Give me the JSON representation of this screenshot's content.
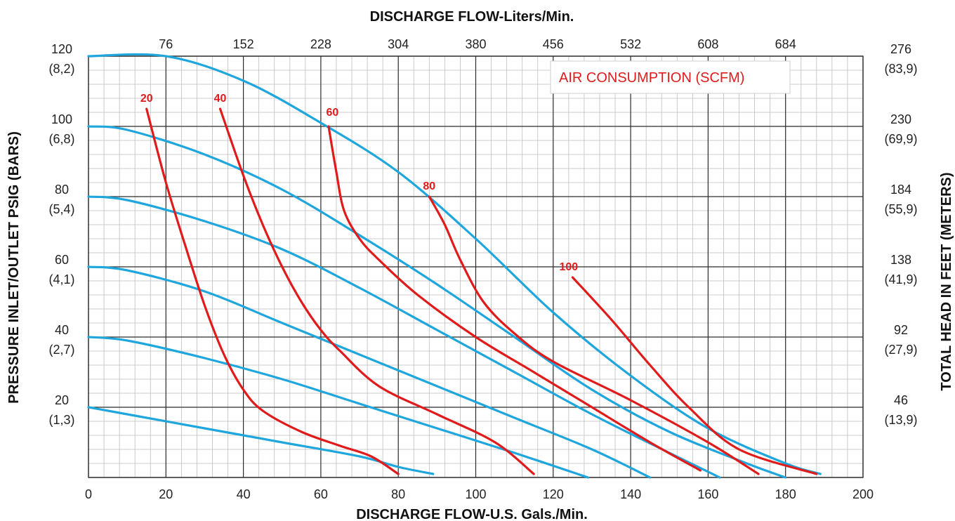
{
  "chart_data": {
    "type": "line",
    "title": "AIR CONSUMPTION (SCFM)",
    "xlabel": "DISCHARGE FLOW-U.S. Gals./Min.",
    "x2label": "DISCHARGE FLOW-Liters/Min.",
    "ylabel": "PRESSURE INLET/OUTLET PSIG (BARS)",
    "y2label": "TOTAL HEAD IN FEET (METERS)",
    "xlim": [
      0,
      200
    ],
    "ylim": [
      0,
      120
    ],
    "grid": true,
    "legend_position": "top-right",
    "x_ticks": [
      "0",
      "20",
      "40",
      "60",
      "80",
      "100",
      "120",
      "140",
      "160",
      "180",
      "200"
    ],
    "x2_ticks": [
      {
        "x": 20,
        "label": "76"
      },
      {
        "x": 40,
        "label": "152"
      },
      {
        "x": 60,
        "label": "228"
      },
      {
        "x": 80,
        "label": "304"
      },
      {
        "x": 100,
        "label": "380"
      },
      {
        "x": 120,
        "label": "456"
      },
      {
        "x": 140,
        "label": "532"
      },
      {
        "x": 160,
        "label": "608"
      },
      {
        "x": 180,
        "label": "684"
      }
    ],
    "y_ticks": [
      {
        "y": 120,
        "psi": "120",
        "bar": "(8,2)"
      },
      {
        "y": 100,
        "psi": "100",
        "bar": "(6,8)"
      },
      {
        "y": 80,
        "psi": "80",
        "bar": "(5,4)"
      },
      {
        "y": 60,
        "psi": "60",
        "bar": "(4,1)"
      },
      {
        "y": 40,
        "psi": "40",
        "bar": "(2,7)"
      },
      {
        "y": 20,
        "psi": "20",
        "bar": "(1,3)"
      }
    ],
    "y2_ticks": [
      {
        "y": 120,
        "ft": "276",
        "m": "(83,9)"
      },
      {
        "y": 100,
        "ft": "230",
        "m": "(69,9)"
      },
      {
        "y": 80,
        "ft": "184",
        "m": "(55,9)"
      },
      {
        "y": 60,
        "ft": "138",
        "m": "(41,9)"
      },
      {
        "y": 40,
        "ft": "92",
        "m": "(27,9)"
      },
      {
        "y": 20,
        "ft": "46",
        "m": "(13,9)"
      }
    ],
    "pressure_curves": [
      {
        "color": "#1ea6dd",
        "points": [
          [
            0,
            20
          ],
          [
            10,
            18
          ],
          [
            30,
            14
          ],
          [
            50,
            10
          ],
          [
            70,
            6
          ],
          [
            80,
            3
          ],
          [
            89,
            1
          ]
        ]
      },
      {
        "color": "#1ea6dd",
        "points": [
          [
            0,
            40
          ],
          [
            10,
            39
          ],
          [
            30,
            34
          ],
          [
            50,
            28
          ],
          [
            70,
            21
          ],
          [
            90,
            14
          ],
          [
            110,
            7
          ],
          [
            129,
            0
          ]
        ]
      },
      {
        "color": "#1ea6dd",
        "points": [
          [
            0,
            60
          ],
          [
            10,
            59
          ],
          [
            30,
            53
          ],
          [
            50,
            44
          ],
          [
            70,
            35
          ],
          [
            90,
            26
          ],
          [
            110,
            17
          ],
          [
            130,
            8
          ],
          [
            145,
            0
          ]
        ]
      },
      {
        "color": "#1ea6dd",
        "points": [
          [
            0,
            80
          ],
          [
            10,
            79
          ],
          [
            30,
            73
          ],
          [
            50,
            65
          ],
          [
            70,
            54
          ],
          [
            90,
            42
          ],
          [
            110,
            30
          ],
          [
            130,
            18
          ],
          [
            150,
            7
          ],
          [
            163,
            0
          ]
        ]
      },
      {
        "color": "#1ea6dd",
        "points": [
          [
            0,
            100
          ],
          [
            10,
            99
          ],
          [
            30,
            92
          ],
          [
            50,
            82
          ],
          [
            70,
            69
          ],
          [
            90,
            55
          ],
          [
            110,
            40
          ],
          [
            130,
            25
          ],
          [
            150,
            13
          ],
          [
            170,
            4
          ],
          [
            180,
            0
          ]
        ]
      },
      {
        "color": "#1ea6dd",
        "points": [
          [
            0,
            120
          ],
          [
            20,
            120
          ],
          [
            40,
            113
          ],
          [
            60,
            101
          ],
          [
            80,
            87
          ],
          [
            100,
            68
          ],
          [
            120,
            47
          ],
          [
            140,
            29
          ],
          [
            160,
            14
          ],
          [
            180,
            4
          ],
          [
            189,
            1
          ]
        ]
      }
    ],
    "air_curves": [
      {
        "label": "20",
        "color": "#e01b1b",
        "label_pos": [
          15,
          107
        ],
        "points": [
          [
            15,
            105
          ],
          [
            20,
            84
          ],
          [
            25,
            66
          ],
          [
            30,
            49
          ],
          [
            35,
            35
          ],
          [
            40,
            25
          ],
          [
            45,
            19
          ],
          [
            55,
            13
          ],
          [
            65,
            9
          ],
          [
            73,
            6
          ],
          [
            80,
            1
          ]
        ]
      },
      {
        "label": "40",
        "color": "#e01b1b",
        "label_pos": [
          34,
          107
        ],
        "points": [
          [
            34,
            105
          ],
          [
            40,
            86
          ],
          [
            45,
            72
          ],
          [
            50,
            60
          ],
          [
            55,
            50
          ],
          [
            60,
            42
          ],
          [
            65,
            36
          ],
          [
            75,
            26
          ],
          [
            90,
            18
          ],
          [
            105,
            10
          ],
          [
            115,
            1
          ]
        ]
      },
      {
        "label": "60",
        "color": "#e01b1b",
        "label_pos": [
          63,
          103
        ],
        "points": [
          [
            62,
            100
          ],
          [
            64,
            87
          ],
          [
            66,
            76
          ],
          [
            70,
            68
          ],
          [
            75,
            62
          ],
          [
            85,
            52
          ],
          [
            100,
            40
          ],
          [
            115,
            30
          ],
          [
            130,
            20
          ],
          [
            145,
            10
          ],
          [
            158,
            2
          ]
        ]
      },
      {
        "label": "80",
        "color": "#e01b1b",
        "label_pos": [
          88,
          82
        ],
        "points": [
          [
            88,
            80
          ],
          [
            92,
            72
          ],
          [
            96,
            62
          ],
          [
            102,
            50
          ],
          [
            110,
            41
          ],
          [
            120,
            33
          ],
          [
            140,
            22
          ],
          [
            160,
            10
          ],
          [
            173,
            1
          ]
        ]
      },
      {
        "label": "100",
        "color": "#e01b1b",
        "label_pos": [
          124,
          59
        ],
        "points": [
          [
            125,
            57
          ],
          [
            135,
            45
          ],
          [
            145,
            32
          ],
          [
            155,
            20
          ],
          [
            168,
            8
          ],
          [
            188,
            1
          ]
        ]
      }
    ]
  }
}
